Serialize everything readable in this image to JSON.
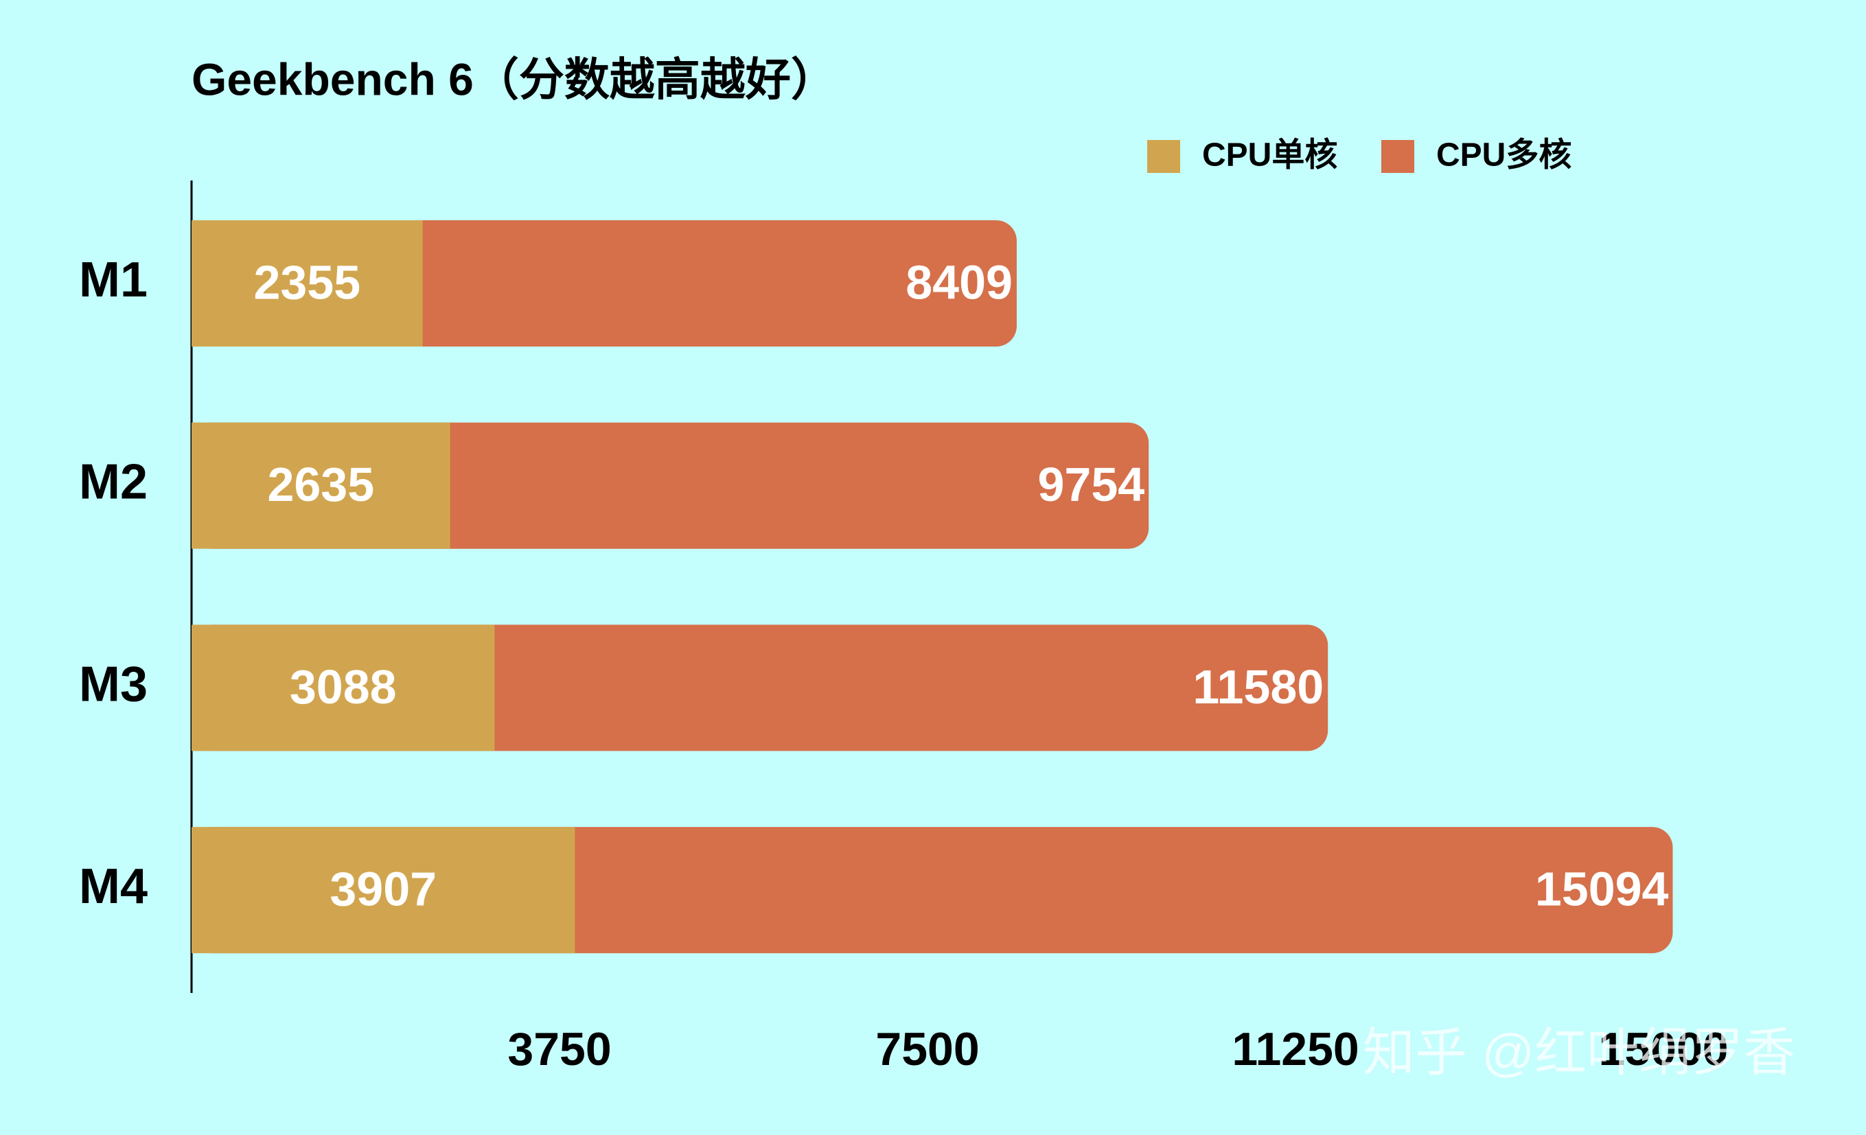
{
  "chart_data": {
    "type": "bar",
    "title": "Geekbench 6（分数越高越好）",
    "categories": [
      "M1",
      "M2",
      "M3",
      "M4"
    ],
    "series": [
      {
        "name": "CPU单核",
        "color": "#d1a54f",
        "values": [
          2355,
          2635,
          3088,
          3907
        ]
      },
      {
        "name": "CPU多核",
        "color": "#d5704a",
        "values": [
          8409,
          9754,
          11580,
          15094
        ]
      }
    ],
    "xlim": [
      0,
      16000
    ],
    "xticks": [
      3750,
      7500,
      11250,
      15000
    ],
    "legend": "top-right",
    "grid": false,
    "watermark": "知乎 @红叶绢罗香"
  }
}
